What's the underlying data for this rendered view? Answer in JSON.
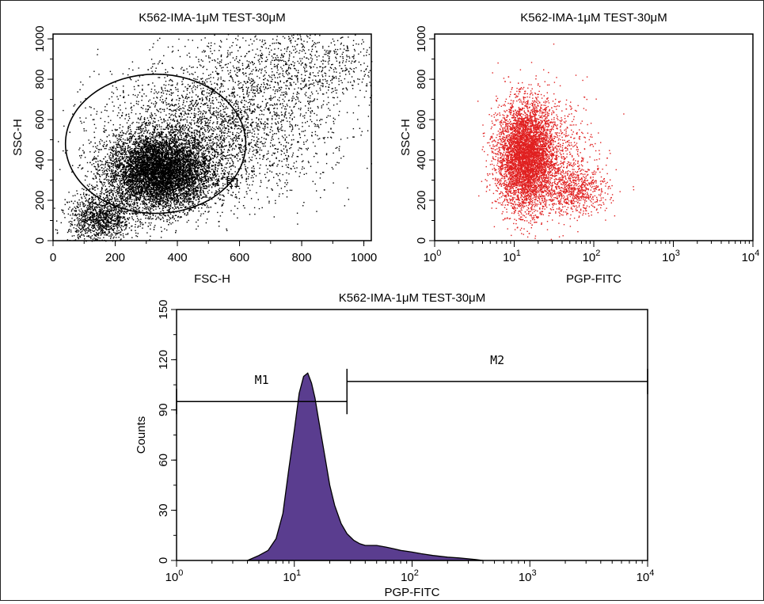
{
  "chart_data": [
    {
      "type": "scatter",
      "title": "K562-IMA-1μM TEST-30μM",
      "xlabel": "FSC-H",
      "ylabel": "SSC-H",
      "xlim": [
        0,
        1024
      ],
      "ylim": [
        0,
        1024
      ],
      "xticks": [
        "0",
        "200",
        "400",
        "600",
        "800",
        "1000"
      ],
      "yticks": [
        "0",
        "200",
        "400",
        "600",
        "800",
        "1000"
      ],
      "point_color": "#000000",
      "gate": {
        "label": "R1",
        "shape": "ellipse",
        "center": [
          330,
          480
        ],
        "radius_x": 290,
        "radius_y": 345
      },
      "density_regions": [
        {
          "center": [
            340,
            340
          ],
          "sd": [
            85,
            95
          ],
          "count": 9000
        },
        {
          "center": [
            520,
            560
          ],
          "sd": [
            180,
            170
          ],
          "count": 3000
        },
        {
          "center": [
            800,
            880
          ],
          "sd": [
            160,
            110
          ],
          "count": 900
        },
        {
          "center": [
            150,
            110
          ],
          "sd": [
            50,
            60
          ],
          "count": 1200
        }
      ]
    },
    {
      "type": "scatter",
      "title": "K562-IMA-1μM TEST-30μM",
      "xlabel": "PGP-FITC",
      "ylabel": "SSC-H",
      "xscale": "log",
      "xlim": [
        1,
        10000
      ],
      "ylim": [
        0,
        1024
      ],
      "xticks": [
        "10^0",
        "10^1",
        "10^2",
        "10^3",
        "10^4"
      ],
      "yticks": [
        "0",
        "200",
        "400",
        "600",
        "800",
        "1000"
      ],
      "point_color": "#e02020",
      "density_regions": [
        {
          "center": [
            14,
            420
          ],
          "sd": [
            0.18,
            130
          ],
          "count": 6000
        },
        {
          "center": [
            60,
            250
          ],
          "sd": [
            0.2,
            60
          ],
          "count": 700
        },
        {
          "center": [
            35,
            450
          ],
          "sd": [
            0.25,
            150
          ],
          "count": 500
        }
      ]
    },
    {
      "type": "area",
      "subtype": "histogram",
      "title": "K562-IMA-1μM TEST-30μM",
      "xlabel": "PGP-FITC",
      "ylabel": "Counts",
      "xscale": "log",
      "xlim": [
        1,
        10000
      ],
      "ylim": [
        0,
        150
      ],
      "xticks": [
        "10^0",
        "10^1",
        "10^2",
        "10^3",
        "10^4"
      ],
      "yticks": [
        "0",
        "30",
        "60",
        "90",
        "120",
        "150"
      ],
      "fill_color": "#5a3d8f",
      "x": [
        4,
        5,
        6,
        7,
        8,
        9,
        10,
        11,
        12,
        13,
        14,
        15,
        16,
        18,
        20,
        22,
        25,
        28,
        32,
        36,
        40,
        50,
        60,
        70,
        80,
        100,
        120,
        150,
        200,
        250,
        300,
        350,
        400
      ],
      "values": [
        0,
        3,
        6,
        13,
        28,
        55,
        78,
        100,
        110,
        112,
        106,
        97,
        85,
        64,
        45,
        33,
        22,
        16,
        12,
        10,
        9,
        9,
        8,
        7,
        6,
        5,
        4,
        3,
        2,
        1.5,
        1,
        0.5,
        0
      ],
      "markers": [
        {
          "label": "M1",
          "range": [
            1,
            28
          ],
          "y": 95
        },
        {
          "label": "M2",
          "range": [
            28,
            10000
          ],
          "y": 107
        }
      ]
    }
  ]
}
